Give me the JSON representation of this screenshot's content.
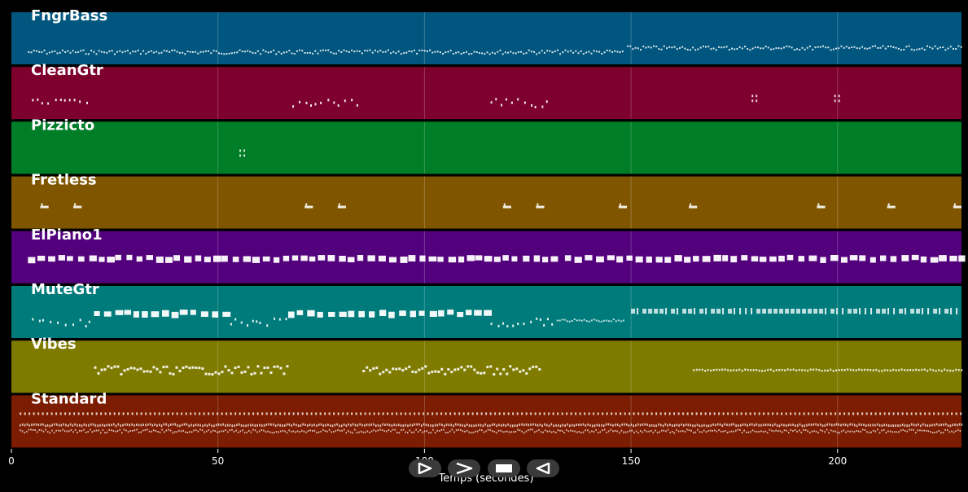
{
  "chart_data": {
    "type": "piano-roll",
    "xlabel": "Temps (secondes)",
    "xlim": [
      0,
      230
    ],
    "xticks": [
      0,
      50,
      100,
      150,
      200
    ],
    "grid": true,
    "tracks": [
      {
        "name": "FngrBass",
        "color": "#00567e",
        "segments": [
          [
            4,
            148,
            "dense"
          ],
          [
            149,
            230,
            "dense-high"
          ]
        ]
      },
      {
        "name": "CleanGtr",
        "color": "#7d002d",
        "segments": [
          [
            5,
            19,
            "sparse"
          ],
          [
            68,
            84,
            "sparse"
          ],
          [
            116,
            130,
            "sparse"
          ],
          [
            179,
            180,
            "single"
          ],
          [
            199,
            200,
            "single"
          ]
        ]
      },
      {
        "name": "Pizzicto",
        "color": "#007d27",
        "segments": [
          [
            55,
            57,
            "single"
          ]
        ]
      },
      {
        "name": "Fretless",
        "color": "#7f5500",
        "segments": [
          [
            7,
            9,
            "blip"
          ],
          [
            15,
            17,
            "blip"
          ],
          [
            71,
            73,
            "blip"
          ],
          [
            79,
            81,
            "blip"
          ],
          [
            119,
            121,
            "blip"
          ],
          [
            127,
            129,
            "blip"
          ],
          [
            147,
            149,
            "blip"
          ],
          [
            164,
            166,
            "blip"
          ],
          [
            195,
            197,
            "blip"
          ],
          [
            212,
            214,
            "blip"
          ],
          [
            228,
            230,
            "blip"
          ]
        ]
      },
      {
        "name": "ElPiano1",
        "color": "#53007d",
        "segments": [
          [
            4,
            133,
            "block"
          ],
          [
            134,
            230,
            "block"
          ]
        ]
      },
      {
        "name": "MuteGtr",
        "color": "#007b7b",
        "segments": [
          [
            5,
            19,
            "sparse"
          ],
          [
            20,
            52,
            "block"
          ],
          [
            53,
            67,
            "sparse"
          ],
          [
            67,
            115,
            "block"
          ],
          [
            116,
            132,
            "sparse"
          ],
          [
            132,
            148,
            "low"
          ],
          [
            150,
            230,
            "mixed"
          ]
        ]
      },
      {
        "name": "Vibes",
        "color": "#7e7b00",
        "segments": [
          [
            20,
            67,
            "melody"
          ],
          [
            85,
            128,
            "melody"
          ],
          [
            165,
            230,
            "steady"
          ]
        ]
      },
      {
        "name": "Standard",
        "color": "#7c1c00",
        "segments": [
          [
            2,
            230,
            "drums"
          ]
        ]
      }
    ]
  },
  "controls": {
    "play_icon": "play-outline-icon",
    "forward_icon": "forward-chevron-icon",
    "stop_icon": "stop-icon",
    "rewind_icon": "rewind-outline-icon"
  }
}
